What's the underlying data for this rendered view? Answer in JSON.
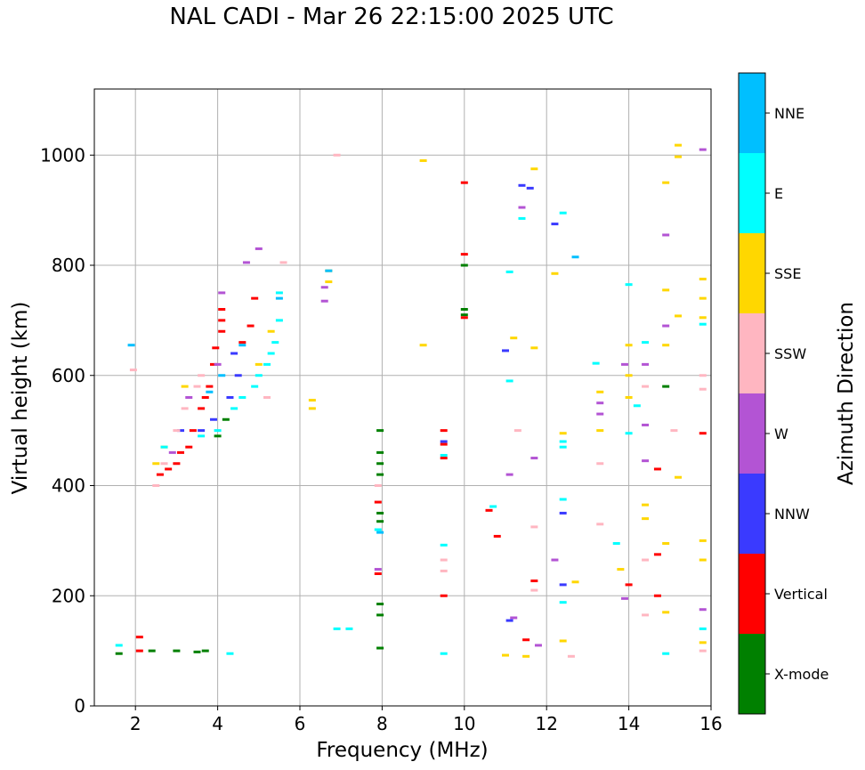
{
  "chart_data": {
    "type": "scatter",
    "title": "NAL CADI - Mar 26 22:15:00 2025 UTC",
    "xlabel": "Frequency (MHz)",
    "ylabel": "Virtual height (km)",
    "xlim": [
      1.0,
      16.0
    ],
    "ylim": [
      0,
      1120
    ],
    "xticks": [
      2,
      4,
      6,
      8,
      10,
      12,
      14,
      16
    ],
    "yticks": [
      0,
      200,
      400,
      600,
      800,
      1000
    ],
    "grid": true,
    "colorbar": {
      "label": "Azimuth Direction",
      "categories": [
        {
          "name": "X-mode",
          "color": "#008000"
        },
        {
          "name": "Vertical",
          "color": "#ff0000"
        },
        {
          "name": "NNW",
          "color": "#3a3aff"
        },
        {
          "name": "W",
          "color": "#b354d4"
        },
        {
          "name": "SSW",
          "color": "#ffb6c1"
        },
        {
          "name": "SSE",
          "color": "#ffd700"
        },
        {
          "name": "E",
          "color": "#00ffff"
        },
        {
          "name": "NNE",
          "color": "#00bfff"
        }
      ]
    },
    "series": [
      {
        "category": "X-mode",
        "points": [
          [
            1.6,
            95
          ],
          [
            2.4,
            100
          ],
          [
            3.0,
            100
          ],
          [
            3.5,
            98
          ],
          [
            3.7,
            100
          ],
          [
            4.0,
            490
          ],
          [
            4.2,
            520
          ],
          [
            7.95,
            105
          ],
          [
            7.95,
            165
          ],
          [
            7.95,
            185
          ],
          [
            7.95,
            335
          ],
          [
            7.95,
            350
          ],
          [
            7.95,
            420
          ],
          [
            7.95,
            440
          ],
          [
            7.95,
            460
          ],
          [
            7.95,
            500
          ],
          [
            10.0,
            710
          ],
          [
            10.0,
            720
          ],
          [
            10.0,
            800
          ],
          [
            14.9,
            580
          ]
        ]
      },
      {
        "category": "Vertical",
        "points": [
          [
            2.1,
            100
          ],
          [
            2.1,
            125
          ],
          [
            2.6,
            420
          ],
          [
            2.8,
            430
          ],
          [
            3.0,
            440
          ],
          [
            3.1,
            460
          ],
          [
            3.3,
            470
          ],
          [
            3.4,
            500
          ],
          [
            3.6,
            540
          ],
          [
            3.7,
            560
          ],
          [
            3.8,
            580
          ],
          [
            3.9,
            620
          ],
          [
            3.95,
            650
          ],
          [
            4.1,
            680
          ],
          [
            4.1,
            700
          ],
          [
            4.1,
            720
          ],
          [
            4.6,
            660
          ],
          [
            4.8,
            690
          ],
          [
            4.9,
            740
          ],
          [
            7.9,
            240
          ],
          [
            7.9,
            370
          ],
          [
            9.5,
            200
          ],
          [
            9.5,
            450
          ],
          [
            9.5,
            475
          ],
          [
            9.5,
            500
          ],
          [
            10.0,
            705
          ],
          [
            10.0,
            820
          ],
          [
            10.0,
            950
          ],
          [
            10.6,
            355
          ],
          [
            10.8,
            308
          ],
          [
            11.5,
            120
          ],
          [
            11.7,
            227
          ],
          [
            14.0,
            220
          ],
          [
            14.7,
            200
          ],
          [
            14.7,
            275
          ],
          [
            14.7,
            430
          ],
          [
            15.8,
            495
          ]
        ]
      },
      {
        "category": "NNW",
        "points": [
          [
            3.1,
            500
          ],
          [
            3.6,
            500
          ],
          [
            3.9,
            520
          ],
          [
            4.3,
            560
          ],
          [
            4.4,
            640
          ],
          [
            4.5,
            600
          ],
          [
            9.5,
            480
          ],
          [
            11.0,
            645
          ],
          [
            11.1,
            155
          ],
          [
            11.4,
            945
          ],
          [
            11.6,
            940
          ],
          [
            12.2,
            875
          ],
          [
            12.4,
            220
          ],
          [
            12.4,
            350
          ]
        ]
      },
      {
        "category": "W",
        "points": [
          [
            2.9,
            460
          ],
          [
            3.3,
            560
          ],
          [
            4.0,
            620
          ],
          [
            4.1,
            750
          ],
          [
            4.7,
            805
          ],
          [
            5.0,
            830
          ],
          [
            6.6,
            735
          ],
          [
            6.6,
            760
          ],
          [
            7.9,
            248
          ],
          [
            11.1,
            420
          ],
          [
            11.2,
            160
          ],
          [
            11.4,
            905
          ],
          [
            11.7,
            450
          ],
          [
            11.8,
            110
          ],
          [
            12.2,
            265
          ],
          [
            13.3,
            530
          ],
          [
            13.3,
            550
          ],
          [
            13.9,
            195
          ],
          [
            13.9,
            620
          ],
          [
            14.4,
            510
          ],
          [
            14.4,
            620
          ],
          [
            14.4,
            445
          ],
          [
            14.9,
            690
          ],
          [
            14.9,
            855
          ],
          [
            15.8,
            175
          ],
          [
            15.8,
            1010
          ]
        ]
      },
      {
        "category": "SSW",
        "points": [
          [
            1.95,
            610
          ],
          [
            2.5,
            400
          ],
          [
            2.7,
            440
          ],
          [
            3.0,
            500
          ],
          [
            3.2,
            540
          ],
          [
            3.5,
            580
          ],
          [
            3.6,
            600
          ],
          [
            5.2,
            560
          ],
          [
            5.6,
            805
          ],
          [
            6.9,
            1000
          ],
          [
            7.9,
            400
          ],
          [
            9.5,
            245
          ],
          [
            9.5,
            265
          ],
          [
            11.3,
            500
          ],
          [
            11.7,
            210
          ],
          [
            11.7,
            325
          ],
          [
            12.6,
            90
          ],
          [
            13.3,
            440
          ],
          [
            13.3,
            330
          ],
          [
            14.4,
            165
          ],
          [
            14.4,
            265
          ],
          [
            14.4,
            580
          ],
          [
            15.1,
            500
          ],
          [
            15.8,
            575
          ],
          [
            15.8,
            100
          ],
          [
            15.8,
            600
          ]
        ]
      },
      {
        "category": "SSE",
        "points": [
          [
            2.5,
            440
          ],
          [
            2.7,
            470
          ],
          [
            3.2,
            580
          ],
          [
            5.0,
            620
          ],
          [
            5.3,
            680
          ],
          [
            6.3,
            555
          ],
          [
            6.3,
            540
          ],
          [
            6.7,
            790
          ],
          [
            6.7,
            770
          ],
          [
            9.0,
            990
          ],
          [
            9.0,
            655
          ],
          [
            11.0,
            92
          ],
          [
            11.2,
            668
          ],
          [
            11.5,
            90
          ],
          [
            11.7,
            650
          ],
          [
            11.7,
            975
          ],
          [
            12.2,
            785
          ],
          [
            12.4,
            495
          ],
          [
            12.4,
            118
          ],
          [
            12.7,
            225
          ],
          [
            13.3,
            500
          ],
          [
            13.3,
            570
          ],
          [
            13.8,
            248
          ],
          [
            14.0,
            655
          ],
          [
            14.0,
            600
          ],
          [
            14.0,
            560
          ],
          [
            14.4,
            340
          ],
          [
            14.4,
            365
          ],
          [
            14.9,
            655
          ],
          [
            14.9,
            755
          ],
          [
            14.9,
            295
          ],
          [
            14.9,
            170
          ],
          [
            14.9,
            950
          ],
          [
            15.2,
            1018
          ],
          [
            15.2,
            997
          ],
          [
            15.2,
            708
          ],
          [
            15.2,
            415
          ],
          [
            15.8,
            775
          ],
          [
            15.8,
            740
          ],
          [
            15.8,
            705
          ],
          [
            15.8,
            300
          ],
          [
            15.8,
            265
          ],
          [
            15.8,
            115
          ]
        ]
      },
      {
        "category": "E",
        "points": [
          [
            1.6,
            110
          ],
          [
            2.7,
            470
          ],
          [
            3.6,
            490
          ],
          [
            4.0,
            500
          ],
          [
            4.4,
            540
          ],
          [
            4.6,
            560
          ],
          [
            4.9,
            580
          ],
          [
            5.0,
            600
          ],
          [
            5.2,
            620
          ],
          [
            5.3,
            640
          ],
          [
            5.4,
            660
          ],
          [
            5.5,
            700
          ],
          [
            5.5,
            750
          ],
          [
            4.3,
            95
          ],
          [
            6.9,
            140
          ],
          [
            7.2,
            140
          ],
          [
            7.9,
            320
          ],
          [
            9.5,
            95
          ],
          [
            9.5,
            292
          ],
          [
            9.5,
            455
          ],
          [
            10.7,
            362
          ],
          [
            11.1,
            590
          ],
          [
            11.1,
            788
          ],
          [
            11.4,
            885
          ],
          [
            12.4,
            895
          ],
          [
            12.4,
            480
          ],
          [
            12.4,
            470
          ],
          [
            12.4,
            375
          ],
          [
            12.4,
            188
          ],
          [
            13.2,
            622
          ],
          [
            13.7,
            295
          ],
          [
            14.0,
            765
          ],
          [
            14.0,
            495
          ],
          [
            14.2,
            545
          ],
          [
            14.4,
            660
          ],
          [
            14.9,
            95
          ],
          [
            15.8,
            140
          ],
          [
            15.8,
            693
          ]
        ]
      },
      {
        "category": "NNE",
        "points": [
          [
            1.9,
            655
          ],
          [
            3.8,
            570
          ],
          [
            4.1,
            600
          ],
          [
            4.6,
            655
          ],
          [
            5.5,
            740
          ],
          [
            6.7,
            790
          ],
          [
            7.95,
            315
          ],
          [
            12.7,
            815
          ]
        ]
      }
    ]
  }
}
